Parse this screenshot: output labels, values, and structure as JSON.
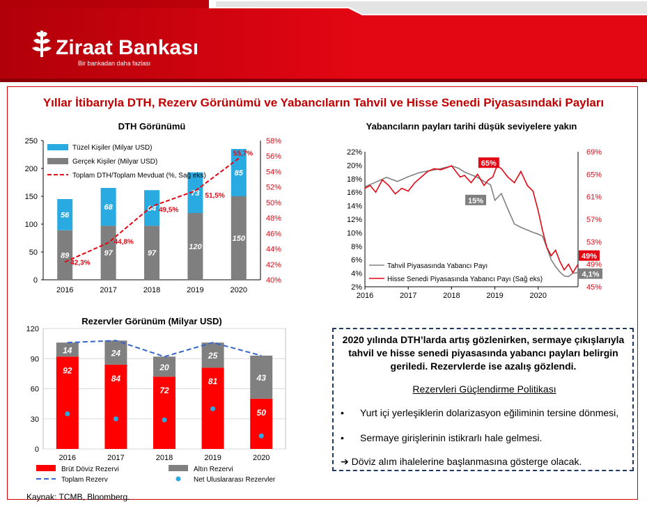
{
  "header": {
    "brand": "Ziraat Bankası",
    "tagline": "Bir bankadan daha fazlası",
    "colors": {
      "red": "#e30613",
      "dark_red": "#b10009",
      "gray": "#a6a6a6"
    }
  },
  "title": "Yıllar İtibarıyla DTH, Rezerv Görünümü ve Yabancıların Tahvil ve Hisse Senedi Piyasasındaki Payları",
  "source": "Kaynak: TCMB,  Bloomberg.",
  "chart_data": [
    {
      "id": "dth",
      "type": "bar",
      "stacked": true,
      "title": "DTH Görünümü",
      "categories": [
        "2016",
        "2017",
        "2018",
        "2019",
        "2020"
      ],
      "series": [
        {
          "name": "Gerçek Kişiler (Milyar USD)",
          "values": [
            89,
            97,
            97,
            120,
            150
          ],
          "color": "#7f7f7f"
        },
        {
          "name": "Tüzel Kişiler (Milyar USD)",
          "values": [
            56,
            68,
            64,
            73,
            85
          ],
          "color": "#29abe2"
        }
      ],
      "line_series": {
        "name": "Toplam DTH/Toplam Mevduat (%, Sağ eks)",
        "values": [
          42.3,
          44.8,
          49.5,
          51.5,
          55.7
        ],
        "labels": [
          "42,3%",
          "44,8%",
          "49,5%",
          "51,5%",
          "55,7%"
        ],
        "color": "#e30613"
      },
      "ylim": [
        0,
        250
      ],
      "yticks": [
        "0",
        "50",
        "100",
        "150",
        "200",
        "250"
      ],
      "y2lim": [
        40,
        58
      ],
      "y2ticks": [
        "40%",
        "42%",
        "44%",
        "46%",
        "48%",
        "50%",
        "52%",
        "54%",
        "56%",
        "58%"
      ],
      "legend_position": "top-left",
      "grid": false
    },
    {
      "id": "foreign",
      "type": "line",
      "title": "Yabancıların payları tarihi düşük seviyelere yakın",
      "xticks": [
        "2016",
        "2017",
        "2018",
        "2019",
        "2020"
      ],
      "xlim": [
        2016.0,
        2020.92
      ],
      "series": [
        {
          "name": "Tahvil Piyasasında Yabancı Payı",
          "axis": "left",
          "color": "#808080",
          "x": [
            2016.0,
            2016.25,
            2016.5,
            2016.75,
            2017.0,
            2017.25,
            2017.5,
            2017.75,
            2018.0,
            2018.15,
            2018.3,
            2018.45,
            2018.6,
            2018.75,
            2018.9,
            2019.0,
            2019.15,
            2019.3,
            2019.45,
            2019.6,
            2019.75,
            2019.9,
            2020.0,
            2020.1,
            2020.2,
            2020.3,
            2020.4,
            2020.5,
            2020.6,
            2020.7,
            2020.8,
            2020.92
          ],
          "y": [
            16.8,
            17.5,
            18.2,
            17.6,
            18.3,
            18.9,
            19.2,
            19.5,
            19.9,
            19.6,
            19.0,
            18.6,
            18.2,
            17.6,
            17.1,
            14.8,
            15.8,
            13.5,
            11.3,
            10.8,
            10.4,
            10.0,
            9.8,
            9.5,
            7.8,
            6.0,
            5.0,
            4.2,
            3.6,
            3.5,
            4.0,
            4.1
          ],
          "end_label": "4,1%",
          "annotation": "15%"
        },
        {
          "name": "Hisse Senedi Piyasasında Yabancı Payı (Sağ eks)",
          "axis": "right",
          "color": "#e30613",
          "x": [
            2016.0,
            2016.12,
            2016.25,
            2016.4,
            2016.55,
            2016.7,
            2016.85,
            2017.0,
            2017.15,
            2017.3,
            2017.45,
            2017.6,
            2017.75,
            2017.9,
            2018.0,
            2018.1,
            2018.2,
            2018.3,
            2018.45,
            2018.6,
            2018.75,
            2018.85,
            2018.95,
            2019.05,
            2019.15,
            2019.3,
            2019.45,
            2019.6,
            2019.75,
            2019.88,
            2020.0,
            2020.1,
            2020.2,
            2020.3,
            2020.4,
            2020.5,
            2020.6,
            2020.7,
            2020.8,
            2020.92
          ],
          "y": [
            62.5,
            63.0,
            61.8,
            64.0,
            63.0,
            61.5,
            62.5,
            62.0,
            63.5,
            64.5,
            65.5,
            66.0,
            65.8,
            66.2,
            66.5,
            65.5,
            64.5,
            64.8,
            63.5,
            65.0,
            63.0,
            64.0,
            64.5,
            66.5,
            66.0,
            64.5,
            63.5,
            65.5,
            63.0,
            62.0,
            58.5,
            55.0,
            52.0,
            50.5,
            51.5,
            49.5,
            48.0,
            49.0,
            47.5,
            49.0
          ],
          "end_label": "49%",
          "annotation": "65%"
        }
      ],
      "ylim": [
        2,
        22
      ],
      "yticks": [
        "2%",
        "4%",
        "6%",
        "8%",
        "10%",
        "12%",
        "14%",
        "16%",
        "18%",
        "20%",
        "22%"
      ],
      "y2lim": [
        45,
        69
      ],
      "y2ticks": [
        "45%",
        "49%",
        "53%",
        "57%",
        "61%",
        "65%",
        "69%"
      ],
      "legend_position": "bottom-left",
      "grid": false
    },
    {
      "id": "reserves",
      "type": "bar",
      "stacked": true,
      "title": "Rezervler Görünüm (Milyar USD)",
      "categories": [
        "2016",
        "2017",
        "2018",
        "2019",
        "2020"
      ],
      "series": [
        {
          "name": "Brüt Döviz Rezervi",
          "values": [
            92,
            84,
            72,
            81,
            50
          ],
          "color": "#ff0000"
        },
        {
          "name": "Altın Rezervi",
          "values": [
            14,
            24,
            20,
            25,
            43
          ],
          "color": "#808080"
        }
      ],
      "line_series": {
        "name": "Toplam Rezerv",
        "values": [
          106,
          108,
          92,
          106,
          93
        ],
        "color": "#3366cc",
        "dash": true
      },
      "point_series": {
        "name": "Net Uluslararası Rezervler",
        "values": [
          35,
          30,
          29,
          40,
          13
        ],
        "color": "#29abe2"
      },
      "ylim": [
        0,
        120
      ],
      "yticks": [
        "0",
        "30",
        "60",
        "90",
        "120"
      ],
      "legend_position": "bottom",
      "grid": true
    }
  ],
  "textbox": {
    "summary": "2020 yılında DTH’larda artış gözlenirken, sermaye çıkışlarıyla tahvil ve hisse senedi piyasasında yabancı payları belirgin geriledi. Rezervlerde ise azalış gözlendi.",
    "policy_title": "Rezervleri Güçlendirme Politikası",
    "bullets": [
      "Yurt içi yerleşiklerin dolarizasyon eğiliminin tersine dönmesi,",
      "Sermaye girişlerinin istikrarlı hale gelmesi."
    ],
    "bullet_symbol": "•",
    "outlook": "➔ Döviz alım ihalelerine başlanmasına gösterge olacak."
  }
}
